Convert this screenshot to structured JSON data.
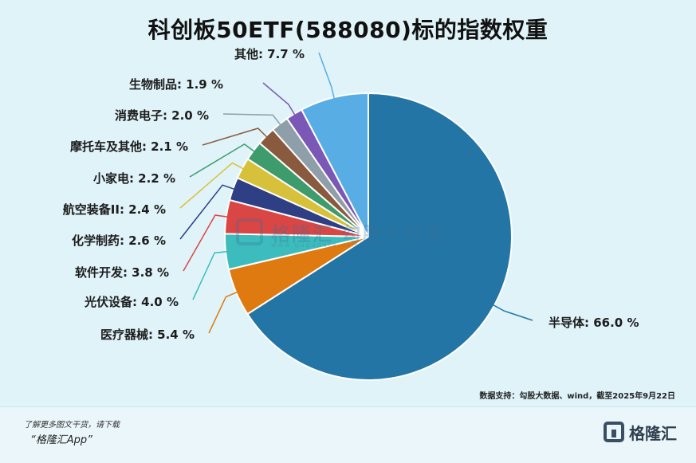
{
  "header": {
    "title": "科创板50ETF(588080)标的指数权重"
  },
  "chart_data": {
    "type": "pie",
    "title": "科创板50ETF(588080)标的指数权重",
    "start": "12 o'clock",
    "direction": "clockwise",
    "slices": [
      {
        "name": "半导体",
        "value": 66.0,
        "label": "半导体: 66.0 %",
        "color": "#2375a5"
      },
      {
        "name": "医疗器械",
        "value": 5.4,
        "label": "医疗器械: 5.4 %",
        "color": "#de7a10"
      },
      {
        "name": "光伏设备",
        "value": 4.0,
        "label": "光伏设备: 4.0 %",
        "color": "#3cbcbc"
      },
      {
        "name": "软件开发",
        "value": 3.8,
        "label": "软件开发: 3.8 %",
        "color": "#d94644"
      },
      {
        "name": "化学制药",
        "value": 2.6,
        "label": "化学制药: 2.6 %",
        "color": "#2e3f84"
      },
      {
        "name": "航空装备II",
        "value": 2.4,
        "label": "航空装备II: 2.4 %",
        "color": "#d8c13a"
      },
      {
        "name": "小家电",
        "value": 2.2,
        "label": "小家电: 2.2 %",
        "color": "#3d9b6c"
      },
      {
        "name": "摩托车及其他",
        "value": 2.1,
        "label": "摩托车及其他: 2.1 %",
        "color": "#8a5a3e"
      },
      {
        "name": "消费电子",
        "value": 2.0,
        "label": "消费电子: 2.0 %",
        "color": "#8f9fa9"
      },
      {
        "name": "生物制品",
        "value": 1.9,
        "label": "生物制品: 1.9 %",
        "color": "#7c58b6"
      },
      {
        "name": "其他",
        "value": 7.7,
        "label": "其他: 7.7 %",
        "color": "#58ade4"
      }
    ]
  },
  "source": "数据支持：勾股大数据、wind，截至2025年9月22日",
  "watermark": {
    "text": "格隆汇 勾股大数据",
    "url": "www.gugudata.com"
  },
  "footer": {
    "promo_line1": "了解更多图文干货，请下载",
    "promo_line2": "“格隆汇App”",
    "brand": "格隆汇"
  }
}
